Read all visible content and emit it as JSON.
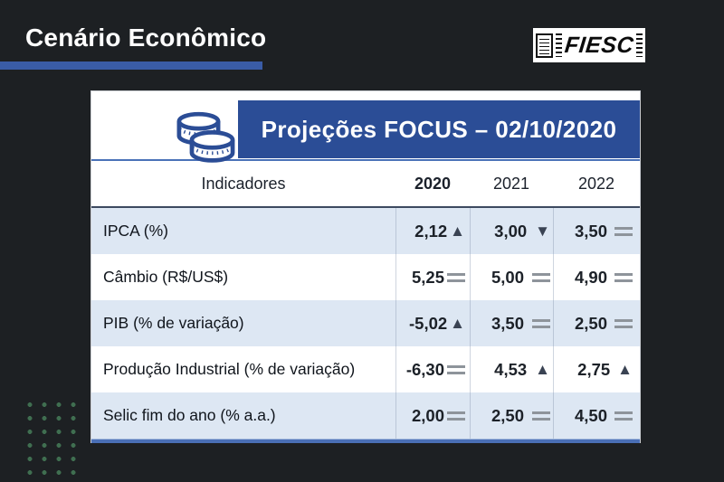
{
  "page": {
    "title": "Cenário Econômico",
    "logo_text": "FIESC"
  },
  "table": {
    "header_title": "Projeções FOCUS – 02/10/2020",
    "header_icon": "coins-icon",
    "columns": [
      "Indicadores",
      "2020",
      "2021",
      "2022"
    ],
    "rows": [
      {
        "label": "IPCA (%)",
        "values": [
          {
            "value": "2,12",
            "trend": "up"
          },
          {
            "value": "3,00",
            "trend": "down"
          },
          {
            "value": "3,50",
            "trend": "equal"
          }
        ]
      },
      {
        "label": "Câmbio (R$/US$)",
        "values": [
          {
            "value": "5,25",
            "trend": "equal"
          },
          {
            "value": "5,00",
            "trend": "equal"
          },
          {
            "value": "4,90",
            "trend": "equal"
          }
        ]
      },
      {
        "label": "PIB (% de variação)",
        "values": [
          {
            "value": "-5,02",
            "trend": "up"
          },
          {
            "value": "3,50",
            "trend": "equal"
          },
          {
            "value": "2,50",
            "trend": "equal"
          }
        ]
      },
      {
        "label": "Produção Industrial (% de variação)",
        "values": [
          {
            "value": "-6,30",
            "trend": "equal"
          },
          {
            "value": "4,53",
            "trend": "up"
          },
          {
            "value": "2,75",
            "trend": "up"
          }
        ]
      },
      {
        "label": "Selic fim do ano (% a.a.)",
        "values": [
          {
            "value": "2,00",
            "trend": "equal"
          },
          {
            "value": "2,50",
            "trend": "equal"
          },
          {
            "value": "4,50",
            "trend": "equal"
          }
        ]
      }
    ]
  },
  "trend_glyphs": {
    "up": "▲",
    "down": "▼"
  },
  "colors": {
    "background": "#1d2023",
    "accent_bar_blue": "#3a5ca6",
    "banner_blue": "#2b4d96",
    "row_alt_blue": "#dde7f3",
    "table_bottom_blue": "#4a6fb5",
    "trend_dark": "#3a4353",
    "equal_gray": "#8e949b",
    "dot_green": "#3f6e50"
  }
}
